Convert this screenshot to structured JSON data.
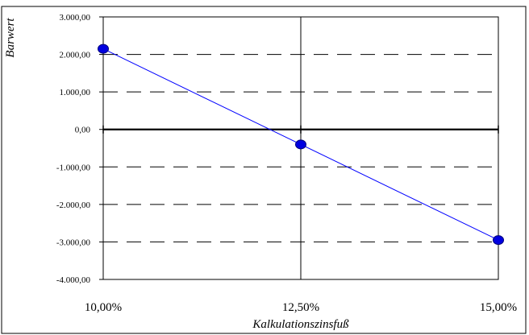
{
  "chart_data": {
    "type": "line",
    "xlabel": "Kalkulationszinsfuß",
    "ylabel": "Barwert",
    "x": [
      0.1,
      0.125,
      0.15
    ],
    "x_tick_labels": [
      "10,00%",
      "12,50%",
      "15,00%"
    ],
    "y_tick_labels": [
      "3.000,00",
      "2.000,00",
      "1.000,00",
      "0,00",
      "-1.000,00",
      "-2.000,00",
      "-3.000,00",
      "-4.000,00"
    ],
    "y_ticks": [
      3000,
      2000,
      1000,
      0,
      -1000,
      -2000,
      -3000,
      -4000
    ],
    "xlim": [
      0.1,
      0.15
    ],
    "ylim": [
      -4000,
      3000
    ],
    "series": [
      {
        "values": [
          2150,
          -400,
          -2950
        ]
      }
    ],
    "grid": "dashed horizontal",
    "colors": {
      "line": "#0000ff",
      "marker": "#0000e0",
      "border": "#000000"
    }
  }
}
